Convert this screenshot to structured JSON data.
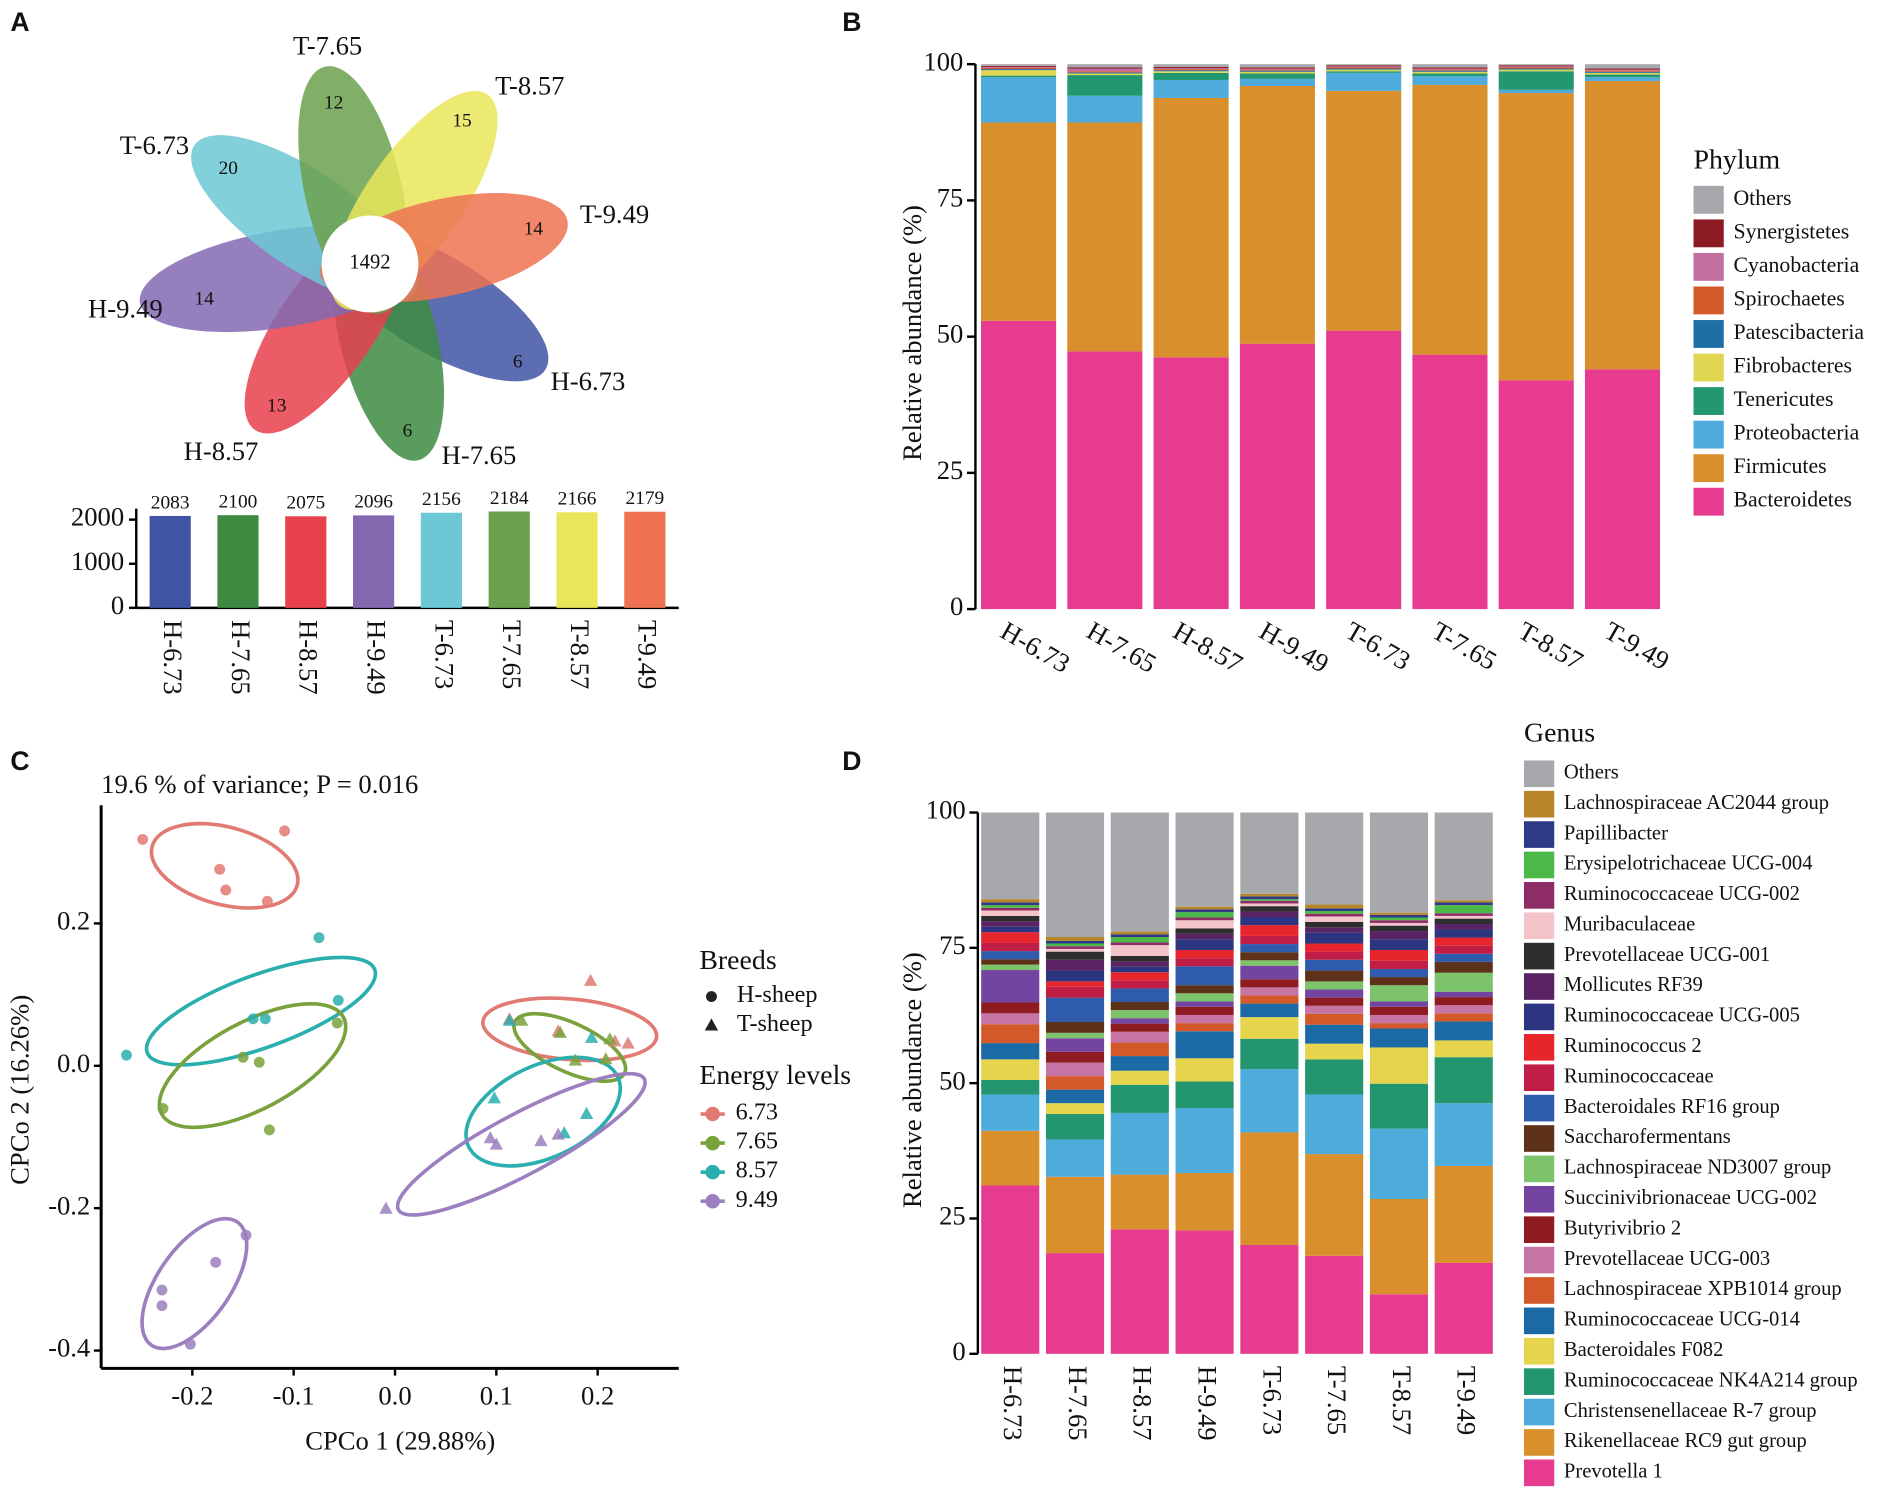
{
  "chart_data": [
    {
      "type": "venn",
      "panel": "A",
      "core": 1492,
      "sets": [
        {
          "name": "H-6.73",
          "count": 6,
          "color": "#3f54a3"
        },
        {
          "name": "H-7.65",
          "count": 6,
          "color": "#3d8b41"
        },
        {
          "name": "H-8.57",
          "count": 13,
          "color": "#e8404c"
        },
        {
          "name": "H-9.49",
          "count": 14,
          "color": "#8368b0"
        },
        {
          "name": "T-6.73",
          "count": 20,
          "color": "#6cc8d4"
        },
        {
          "name": "T-7.65",
          "count": 12,
          "color": "#6ca14e"
        },
        {
          "name": "T-8.57",
          "count": 15,
          "color": "#e9e65a"
        },
        {
          "name": "T-9.49",
          "count": 14,
          "color": "#ef7352"
        }
      ]
    },
    {
      "type": "bar",
      "categories": [
        "H-6.73",
        "H-7.65",
        "H-8.57",
        "H-9.49",
        "T-6.73",
        "T-7.65",
        "T-8.57",
        "T-9.49"
      ],
      "values": [
        2083,
        2100,
        2075,
        2096,
        2156,
        2184,
        2166,
        2179
      ],
      "colors": [
        "#3f54a3",
        "#3d8b41",
        "#e8404c",
        "#8368b0",
        "#6cc8d4",
        "#6ca14e",
        "#e9e65a",
        "#ef7352"
      ],
      "ylim": [
        0,
        2250
      ],
      "yticks": [
        0,
        1000,
        2000
      ]
    },
    {
      "type": "stacked_bar",
      "panel": "B",
      "y_label": "Relative abundance (%)",
      "legend_title": "Phylum",
      "categories": [
        "H-6.73",
        "H-7.65",
        "H-8.57",
        "H-9.49",
        "T-6.73",
        "T-7.65",
        "T-8.57",
        "T-9.49"
      ],
      "ylim": [
        0,
        100
      ],
      "yticks": [
        0,
        25,
        50,
        75,
        100
      ],
      "series": [
        {
          "name": "Bacteroidetes",
          "color": "#e63b8e",
          "values": [
            52.9,
            47.3,
            46.2,
            48.7,
            51.1,
            46.7,
            42,
            44
          ]
        },
        {
          "name": "Firmicutes",
          "color": "#d98f2b",
          "values": [
            36.4,
            42,
            47.6,
            47.3,
            44,
            49.5,
            52.7,
            52.9
          ]
        },
        {
          "name": "Proteobacteria",
          "color": "#4eabdc",
          "values": [
            8.3,
            4.9,
            3.3,
            1.3,
            3.3,
            1.6,
            0.6,
            0.7
          ]
        },
        {
          "name": "Tenericutes",
          "color": "#229770",
          "values": [
            0.3,
            3.8,
            1.3,
            1,
            0.3,
            0.5,
            3.4,
            0.5
          ]
        },
        {
          "name": "Fibrobacteres",
          "color": "#e1d652",
          "values": [
            1,
            0.3,
            0.3,
            0.3,
            0.3,
            0.3,
            0.3,
            0.3
          ]
        },
        {
          "name": "Patescibacteria",
          "color": "#1f6ea6",
          "values": [
            0.2,
            0.2,
            0.2,
            0.2,
            0.2,
            0.2,
            0.2,
            0.2
          ]
        },
        {
          "name": "Spirochaetes",
          "color": "#d2592a",
          "values": [
            0.2,
            0.2,
            0.2,
            0.2,
            0.2,
            0.2,
            0.2,
            0.2
          ]
        },
        {
          "name": "Cyanobacteria",
          "color": "#c36fa0",
          "values": [
            0.2,
            0.5,
            0.2,
            0.2,
            0.2,
            0.2,
            0.2,
            0.2
          ]
        },
        {
          "name": "Synergistetes",
          "color": "#8b1a22",
          "values": [
            0.2,
            0.2,
            0.2,
            0.2,
            0.2,
            0.2,
            0.2,
            0.2
          ]
        },
        {
          "name": "Others",
          "color": "#a7a8ab",
          "values": [
            0.3,
            0.6,
            0.5,
            0.6,
            0.2,
            0.6,
            0.2,
            0.8
          ]
        }
      ]
    },
    {
      "type": "scatter",
      "panel": "C",
      "subtitle": "19.6 % of variance; P = 0.016",
      "x_label": "CPCo 1 (29.88%)",
      "y_label": "CPCo 2 (16.26%)",
      "xlim": [
        -0.29,
        0.28
      ],
      "ylim": [
        -0.425,
        0.366
      ],
      "xticks": [
        -0.2,
        -0.1,
        {
          "value": 0,
          "label": "0.0"
        },
        0.1,
        0.2
      ],
      "yticks": [
        0.2,
        {
          "value": 0,
          "label": "0.0"
        },
        -0.2,
        -0.4
      ],
      "breeds_title": "Breeds",
      "breeds": [
        {
          "name": "H-sheep",
          "marker": "circle"
        },
        {
          "name": "T-sheep",
          "marker": "triangle"
        }
      ],
      "legend_title": "Energy levels",
      "series": [
        {
          "name": "6.73",
          "color": "#e07a72",
          "breed": [
            0,
            0,
            0,
            0,
            0,
            1,
            1,
            1,
            1,
            1
          ],
          "x": [
            -0.249,
            -0.109,
            -0.173,
            -0.167,
            -0.126,
            0.193,
            0.113,
            0.217,
            0.23,
            0.161
          ],
          "y": [
            0.318,
            0.33,
            0.276,
            0.247,
            0.231,
            0.119,
            0.065,
            0.034,
            0.031,
            0.048
          ]
        },
        {
          "name": "7.65",
          "color": "#7aa23c",
          "breed": [
            0,
            0,
            0,
            0,
            0,
            1,
            1,
            1,
            1,
            1
          ],
          "x": [
            -0.229,
            -0.124,
            -0.134,
            -0.15,
            -0.057,
            0.163,
            0.212,
            0.178,
            0.208,
            0.125
          ],
          "y": [
            -0.06,
            -0.09,
            0.005,
            0.012,
            0.06,
            0.046,
            0.037,
            0.007,
            0.009,
            0.063
          ]
        },
        {
          "name": "8.57",
          "color": "#2aaeae",
          "breed": [
            0,
            0,
            0,
            0,
            0,
            1,
            1,
            1,
            1,
            1
          ],
          "x": [
            -0.265,
            -0.075,
            -0.056,
            -0.14,
            -0.128,
            0.098,
            0.189,
            0.194,
            0.167,
            0.113
          ],
          "y": [
            0.015,
            0.18,
            0.092,
            0.066,
            0.066,
            -0.046,
            -0.068,
            0.039,
            -0.095,
            0.063
          ]
        },
        {
          "name": "9.49",
          "color": "#9b7fbf",
          "breed": [
            0,
            0,
            0,
            0,
            0,
            1,
            1,
            1,
            1,
            1
          ],
          "x": [
            -0.147,
            -0.177,
            -0.23,
            -0.23,
            -0.202,
            -0.009,
            0.094,
            0.1,
            0.144,
            0.161
          ],
          "y": [
            -0.238,
            -0.276,
            -0.315,
            -0.337,
            -0.391,
            -0.201,
            -0.102,
            -0.111,
            -0.106,
            -0.097
          ]
        }
      ]
    },
    {
      "type": "stacked_bar",
      "panel": "D",
      "y_label": "Relative abundance (%)",
      "legend_title": "Genus",
      "categories": [
        "H-6.73",
        "H-7.65",
        "H-8.57",
        "H-9.49",
        "T-6.73",
        "T-7.65",
        "T-8.57",
        "T-9.49"
      ],
      "ylim": [
        0,
        100
      ],
      "yticks": [
        0,
        25,
        50,
        75,
        100
      ],
      "series": [
        {
          "name": "Prevotella 1",
          "color": "#e63b8e",
          "values": [
            31.1,
            18.6,
            23,
            22.8,
            20.1,
            18.1,
            11,
            16.8
          ]
        },
        {
          "name": "Rikenellaceae RC9 gut group",
          "color": "#d98f2b",
          "values": [
            10.1,
            14.1,
            10.1,
            10.6,
            20.8,
            18.8,
            17.6,
            17.9
          ]
        },
        {
          "name": "Christensenellaceae R-7 group",
          "color": "#4eacdb",
          "values": [
            6.7,
            6.9,
            11.4,
            12,
            11.7,
            11,
            13,
            11.6
          ]
        },
        {
          "name": "Ruminococcaceae NK4A214 group",
          "color": "#23966f",
          "values": [
            2.7,
            4.7,
            5.2,
            4.9,
            5.6,
            6.5,
            8.3,
            8.5
          ]
        },
        {
          "name": "Bacteroidales F082",
          "color": "#e6d44d",
          "values": [
            3.8,
            2,
            2.6,
            4.3,
            4,
            2.9,
            6.7,
            3.1
          ]
        },
        {
          "name": "Ruminococcaceae UCG-014",
          "color": "#1b6aa5",
          "values": [
            3,
            2.5,
            2.7,
            5,
            2.5,
            3.5,
            3.5,
            3.5
          ]
        },
        {
          "name": "Lachnospiraceae XPB1014 group",
          "color": "#d4592a",
          "values": [
            3.5,
            2.5,
            2.5,
            1.5,
            1.5,
            2,
            1,
            1.5
          ]
        },
        {
          "name": "Prevotellaceae UCG-003",
          "color": "#c574a4",
          "values": [
            2,
            2.5,
            2,
            1.5,
            1.5,
            1.5,
            1.5,
            1.5
          ]
        },
        {
          "name": "Butyrivibrio 2",
          "color": "#8d1b1f",
          "values": [
            2,
            2,
            1.5,
            1.5,
            1.5,
            1.5,
            1.5,
            1.5
          ]
        },
        {
          "name": "Succinivibrionaceae UCG-002",
          "color": "#7345a0",
          "values": [
            6,
            2.5,
            1,
            1,
            2.5,
            1.5,
            1,
            1
          ]
        },
        {
          "name": "Lachnospiraceae ND3007 group",
          "color": "#7cc36c",
          "values": [
            1,
            1,
            1.5,
            1.5,
            1,
            1.5,
            3,
            3.5
          ]
        },
        {
          "name": "Saccharofermentans",
          "color": "#5e3119",
          "values": [
            1,
            2,
            1.5,
            1.5,
            1.5,
            2,
            1.5,
            2
          ]
        },
        {
          "name": "Bacteroidales RF16 group",
          "color": "#2f5bac",
          "values": [
            1.5,
            4.5,
            2.5,
            3.5,
            1.5,
            2,
            1.5,
            1.5
          ]
        },
        {
          "name": "Ruminococcaceae",
          "color": "#c11e47",
          "values": [
            1.5,
            2,
            1.5,
            1.5,
            1.5,
            1.5,
            1.5,
            1.5
          ]
        },
        {
          "name": "Ruminococcus 2",
          "color": "#e6262c",
          "values": [
            2,
            1,
            1.5,
            1.5,
            2,
            1.5,
            2,
            1.5
          ]
        },
        {
          "name": "Ruminococcaceae UCG-005",
          "color": "#2b3580",
          "values": [
            1,
            2,
            1,
            2,
            1.5,
            2,
            2,
            1.5
          ]
        },
        {
          "name": "Mollicutes RF39",
          "color": "#5a2464",
          "values": [
            1,
            2,
            1,
            1,
            1,
            1,
            1.5,
            1
          ]
        },
        {
          "name": "Prevotellaceae UCG-001",
          "color": "#2e2e2e",
          "values": [
            1,
            1.5,
            1,
            1,
            1,
            1,
            1,
            1
          ]
        },
        {
          "name": "Muribaculaceae",
          "color": "#f4c4cb",
          "values": [
            1,
            0.5,
            2,
            1.5,
            0.5,
            1,
            0.5,
            0.5
          ]
        },
        {
          "name": "Ruminococcaceae UCG-002",
          "color": "#8e2c66",
          "values": [
            0.5,
            0.5,
            0.5,
            0.5,
            0.5,
            0.5,
            0.5,
            0.5
          ]
        },
        {
          "name": "Erysipelotrichaceae UCG-004",
          "color": "#4cb848",
          "values": [
            0.5,
            0.5,
            1,
            1,
            0.3,
            0.5,
            0.5,
            1.5
          ]
        },
        {
          "name": "Papillibacter",
          "color": "#2e3a87",
          "values": [
            0.5,
            0.5,
            0.5,
            0.5,
            0.5,
            0.5,
            0.5,
            0.5
          ]
        },
        {
          "name": "Lachnospiraceae AC2044 group",
          "color": "#b8862a",
          "values": [
            0.6,
            0.7,
            0.5,
            0.5,
            0.5,
            0.7,
            0.4,
            0.4
          ]
        },
        {
          "name": "Others",
          "color": "#a7a8ab",
          "values": [
            16,
            23,
            22,
            17.4,
            15,
            17,
            18.5,
            16.2
          ]
        }
      ]
    }
  ]
}
